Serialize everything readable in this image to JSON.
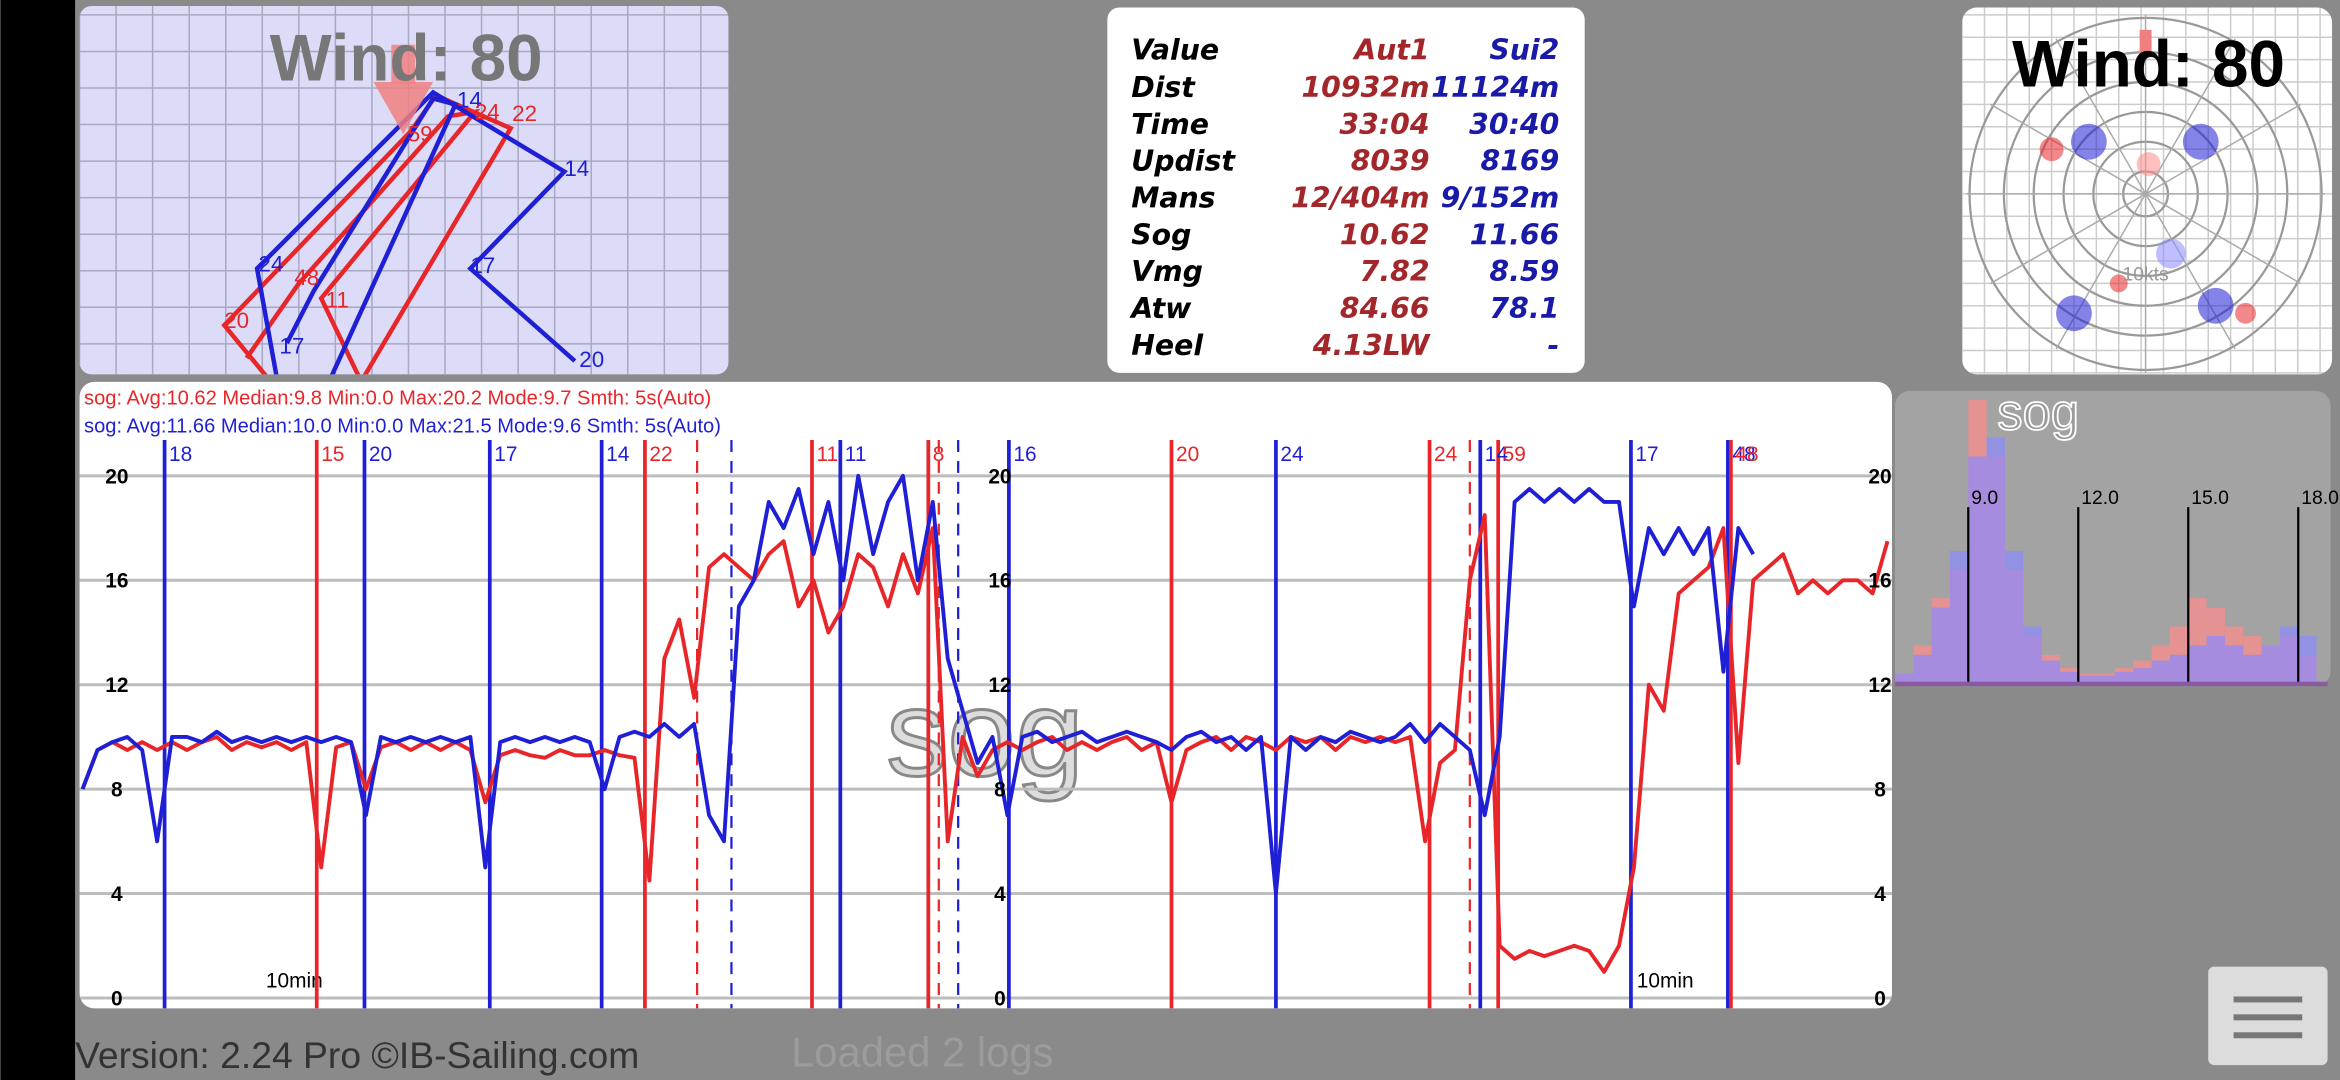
{
  "map": {
    "title": "Wind: 80",
    "labels": [
      "14",
      "14",
      "24",
      "17",
      "17",
      "20",
      "24",
      "22",
      "59",
      "48",
      "11",
      "20"
    ]
  },
  "stats_table": {
    "header": [
      "Value",
      "Aut1",
      "Sui2"
    ],
    "rows": [
      [
        "Dist",
        "10932m",
        "11124m"
      ],
      [
        "Time",
        "33:04",
        "30:40"
      ],
      [
        "Updist",
        "8039",
        "8169"
      ],
      [
        "Mans",
        "12/404m",
        "9/152m"
      ],
      [
        "Sog",
        "10.62",
        "11.66"
      ],
      [
        "Vmg",
        "7.82",
        "8.59"
      ],
      [
        "Atw",
        "84.66",
        "78.1"
      ],
      [
        "Heel",
        "4.13LW",
        "-"
      ]
    ]
  },
  "polar": {
    "title": "Wind: 80",
    "ring_label": "10kts"
  },
  "chart_data": [
    {
      "type": "line",
      "title": "sog",
      "ylim": [
        0,
        20
      ],
      "yticks": [
        0,
        4,
        8,
        12,
        16,
        20
      ],
      "xlim": [
        0,
        121
      ],
      "grid": true,
      "time_labels": [
        "10min",
        "10min"
      ],
      "series": [
        {
          "summary": "sog:  Avg:10.62 Median:9.8 Min:0.0 Max:20.2 Mode:9.7 Smth: 5s(Auto)",
          "color": "#e8262a",
          "values": [
            8,
            9.5,
            9.8,
            9.5,
            9.8,
            9.5,
            9.8,
            9.5,
            9.8,
            10,
            9.5,
            9.8,
            9.6,
            9.8,
            9.5,
            9.8,
            5,
            9.6,
            9.8,
            8,
            9.6,
            9.8,
            9.5,
            9.8,
            9.5,
            9.8,
            9.5,
            7.5,
            9.3,
            9.5,
            9.3,
            9.2,
            9.5,
            9.3,
            9.3,
            9.5,
            9.3,
            9.2,
            4.5,
            13,
            14.5,
            11.5,
            16.5,
            17,
            16.5,
            16,
            17,
            17.5,
            15,
            16,
            14,
            15,
            17,
            16.5,
            15,
            17,
            15.5,
            18,
            6,
            10,
            8.5,
            9.5,
            9.8,
            9.5,
            9.8,
            10,
            9.5,
            9.8,
            9.5,
            9.8,
            10,
            9.5,
            9.8,
            7.5,
            9.5,
            9.8,
            10,
            9.5,
            10,
            9.8,
            9.5,
            10,
            9.8,
            10,
            9.5,
            10,
            9.8,
            10,
            9.8,
            10,
            6,
            9,
            9.5,
            16,
            18.5,
            2,
            1.5,
            1.8,
            1.6,
            1.8,
            2,
            1.8,
            1,
            2,
            5,
            12,
            11,
            15.5,
            16,
            16.5,
            18,
            9,
            16,
            16.5,
            17,
            15.5,
            16,
            15.5,
            16,
            16,
            15.5,
            17.5
          ]
        },
        {
          "summary": "sog:  Avg:11.66 Median:10.0 Min:0.0 Max:21.5 Mode:9.6 Smth: 5s(Auto)",
          "color": "#1f1fd6",
          "values": [
            8,
            9.5,
            9.8,
            10,
            9.5,
            6,
            10,
            10,
            9.8,
            10.2,
            9.8,
            10,
            9.8,
            10,
            9.8,
            10,
            9.8,
            10,
            9.8,
            7,
            10,
            9.8,
            10,
            9.8,
            10,
            9.8,
            10,
            5,
            9.8,
            10,
            9.8,
            10,
            9.8,
            10,
            9.8,
            8,
            10,
            10.2,
            10,
            10.5,
            10,
            10.5,
            7,
            6,
            15,
            16,
            19,
            18,
            19.5,
            17,
            19,
            16,
            20,
            17,
            19,
            20,
            16,
            19,
            13,
            11,
            9,
            10,
            7,
            10,
            10.2,
            9.8,
            10,
            10.2,
            9.8,
            10,
            10.2,
            10,
            9.8,
            9.5,
            10,
            10.2,
            9.8,
            10,
            9.5,
            10,
            4,
            10,
            9.5,
            10,
            9.8,
            10.2,
            10,
            9.8,
            10,
            10.5,
            9.8,
            10.5,
            10,
            9.5,
            7,
            10,
            19,
            19.5,
            19,
            19.5,
            19,
            19.5,
            19,
            19,
            15,
            18,
            17,
            18,
            17,
            18,
            12.5,
            18,
            17
          ]
        }
      ],
      "markers": [
        {
          "label": "18",
          "color": "#1f1fd6",
          "x": 5.5
        },
        {
          "label": "15",
          "color": "#e8262a",
          "x": 15.7
        },
        {
          "label": "20",
          "color": "#1f1fd6",
          "x": 18.9
        },
        {
          "label": "17",
          "color": "#1f1fd6",
          "x": 27.3
        },
        {
          "label": "14",
          "color": "#1f1fd6",
          "x": 34.8
        },
        {
          "label": "22",
          "color": "#e8262a",
          "x": 37.7
        },
        {
          "label": null,
          "color": "#e8262a",
          "x": 41.2,
          "style": "dashed"
        },
        {
          "label": null,
          "color": "#1f1fd6",
          "x": 43.5,
          "style": "dashed"
        },
        {
          "label": "11",
          "color": "#e8262a",
          "x": 48.9
        },
        {
          "label": "11",
          "color": "#1f1fd6",
          "x": 50.8
        },
        {
          "label": "8",
          "color": "#e8262a",
          "x": 56.7
        },
        {
          "label": null,
          "color": "#e8262a",
          "x": 57.4,
          "style": "dashed"
        },
        {
          "label": null,
          "color": "#1f1fd6",
          "x": 58.7,
          "style": "dashed"
        },
        {
          "label": "16",
          "color": "#1f1fd6",
          "x": 62.1
        },
        {
          "label": "20",
          "color": "#e8262a",
          "x": 73
        },
        {
          "label": "24",
          "color": "#1f1fd6",
          "x": 80
        },
        {
          "label": "24",
          "color": "#e8262a",
          "x": 90.3
        },
        {
          "label": null,
          "color": "#e8262a",
          "x": 93,
          "style": "dashed"
        },
        {
          "label": "14",
          "color": "#1f1fd6",
          "x": 93.7
        },
        {
          "label": "59",
          "color": "#e8262a",
          "x": 94.9
        },
        {
          "label": "17",
          "color": "#1f1fd6",
          "x": 103.8
        },
        {
          "label": "48",
          "color": "#1f1fd6",
          "x": 110.3
        },
        {
          "label": "48",
          "color": "#e8262a",
          "x": 110.5
        }
      ]
    },
    {
      "type": "histogram",
      "title": "sog",
      "xlim": [
        7,
        18.8
      ],
      "xticks": [
        {
          "value": 9,
          "label": "9.0"
        },
        {
          "value": 12,
          "label": "12.0"
        },
        {
          "value": 15,
          "label": "15.0"
        },
        {
          "value": 18,
          "label": "18.0"
        }
      ],
      "bins": [
        7,
        7.5,
        8,
        8.5,
        9,
        9.5,
        10,
        10.5,
        11,
        11.5,
        12,
        12.5,
        13,
        13.5,
        14,
        14.5,
        15,
        15.5,
        16,
        16.5,
        17,
        17.5,
        18,
        18.5
      ],
      "series": [
        {
          "color": "#ff8a8a",
          "values": [
            5,
            20,
            45,
            60,
            150,
            120,
            60,
            25,
            15,
            8,
            5,
            5,
            8,
            12,
            20,
            30,
            45,
            40,
            30,
            25,
            20,
            25,
            15
          ]
        },
        {
          "color": "#8a8aff",
          "values": [
            5,
            15,
            40,
            70,
            120,
            130,
            70,
            30,
            12,
            6,
            4,
            4,
            6,
            8,
            12,
            15,
            20,
            25,
            20,
            15,
            20,
            30,
            25
          ]
        }
      ]
    }
  ],
  "footer": {
    "version": "Version: 2.24 Pro ©IB-Sailing.com",
    "status": "Loaded 2 logs"
  }
}
